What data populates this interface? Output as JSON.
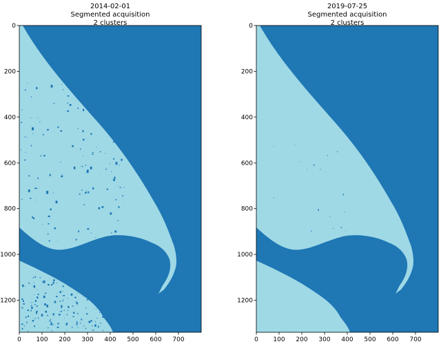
{
  "chart_data": [
    {
      "type": "heatmap",
      "title_lines": [
        "2014-02-01",
        "Segmented acquisition",
        "2 clusters"
      ],
      "x_ticks": [
        0,
        100,
        200,
        300,
        400,
        500,
        600,
        700
      ],
      "y_ticks": [
        0,
        200,
        400,
        600,
        800,
        1000,
        1200
      ],
      "xlim": [
        0,
        800
      ],
      "ylim": [
        1340,
        0
      ],
      "colors": {
        "cluster_0": "#1f77b4",
        "cluster_1": "#9fd9e6"
      },
      "grid": false
    },
    {
      "type": "heatmap",
      "title_lines": [
        "2019-07-25",
        "Segmented acquisition",
        "2 clusters"
      ],
      "x_ticks": [
        0,
        100,
        200,
        300,
        400,
        500,
        600,
        700
      ],
      "y_ticks": [
        0,
        200,
        400,
        600,
        800,
        1000,
        1200
      ],
      "xlim": [
        0,
        800
      ],
      "ylim": [
        1340,
        0
      ],
      "colors": {
        "cluster_0": "#1f77b4",
        "cluster_1": "#9fd9e6"
      },
      "grid": false
    }
  ]
}
